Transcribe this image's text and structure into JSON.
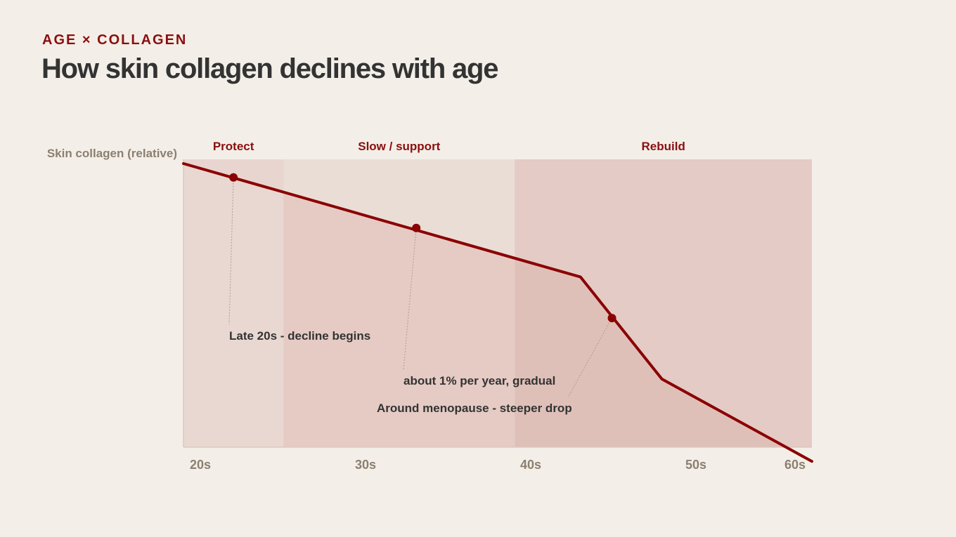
{
  "header": {
    "kicker": "AGE × COLLAGEN",
    "title": "How skin collagen declines with age"
  },
  "colors": {
    "accent": "#8b0f0f",
    "line": "#8b0000",
    "band_light": "#e8d8d1",
    "band_mid": "#e5cbc4",
    "band_dark": "#dfc0b9",
    "plot_bg": "#e4ccc6",
    "axis_text": "#8c7f70",
    "annotation_text": "#333333"
  },
  "chart_data": {
    "type": "line",
    "title": "",
    "ylabel": "Skin collagen (relative)",
    "xlabel": "",
    "x_ticks": [
      "20s",
      "30s",
      "40s",
      "50s",
      "60s"
    ],
    "xlim": [
      18,
      62
    ],
    "ylim": [
      0,
      100
    ],
    "grid": false,
    "series": [
      {
        "x": [
          18,
          45.8,
          51.5,
          62
        ],
        "y": [
          100,
          60,
          24,
          -5
        ]
      }
    ],
    "zones": [
      {
        "label": "Protect",
        "x_start": 18,
        "x_end": 25
      },
      {
        "label": "Slow / support",
        "x_start": 25,
        "x_end": 41.2
      },
      {
        "label": "Rebuild",
        "x_start": 41.2,
        "x_end": 62
      }
    ],
    "annotations": [
      {
        "text": "Late 20s - decline begins",
        "x": 21.5,
        "y": 95.1
      },
      {
        "text": "about 1% per year, gradual",
        "x": 34.3,
        "y": 77.3
      },
      {
        "text": "Around menopause - steeper drop",
        "x": 48,
        "y": 45.5
      }
    ]
  }
}
